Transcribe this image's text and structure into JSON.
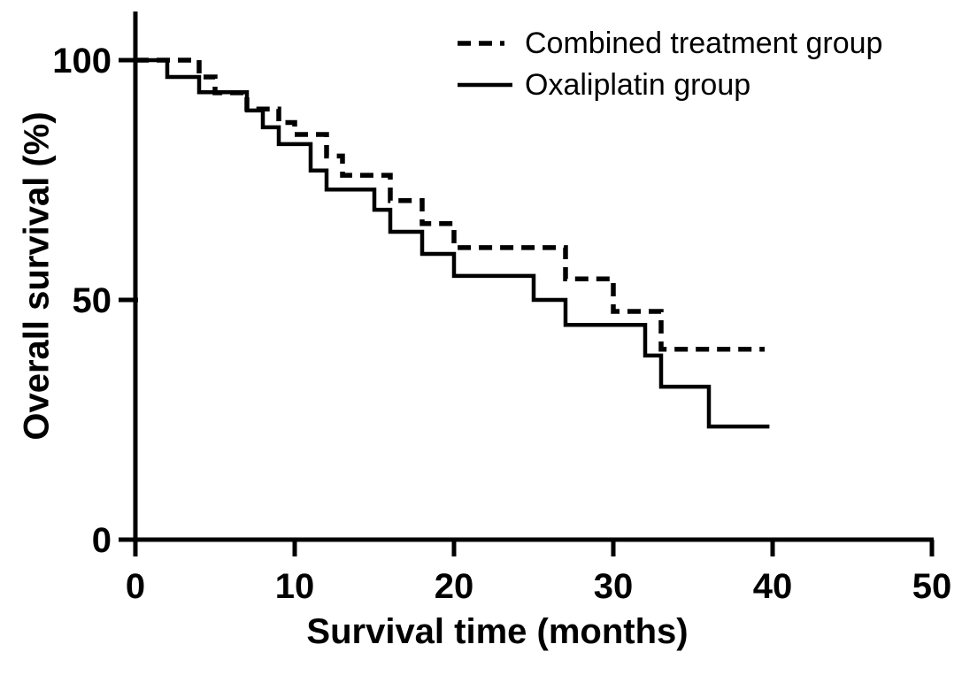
{
  "figure": {
    "background": "#ffffff",
    "line_color": "#000000"
  },
  "chart_data": {
    "type": "line",
    "subtype": "kaplan-meier-step",
    "title": "",
    "xlabel": "Survival time (months)",
    "ylabel": "Overall survival (%)",
    "xlim": [
      0,
      50
    ],
    "ylim": [
      0,
      100
    ],
    "x_ticks": [
      0,
      10,
      20,
      30,
      40,
      50
    ],
    "y_ticks": [
      100,
      50,
      0
    ],
    "grid": false,
    "legend_position": "top-right-inside",
    "series": [
      {
        "name": "Combined treatment group",
        "line_style": "dashed",
        "color": "#000000",
        "step_points": [
          [
            0,
            100
          ],
          [
            4,
            96.5
          ],
          [
            5,
            93.2
          ],
          [
            7,
            89.8
          ],
          [
            9,
            87
          ],
          [
            10,
            84.5
          ],
          [
            12,
            80
          ],
          [
            13,
            76
          ],
          [
            16,
            70.7
          ],
          [
            18,
            65.9
          ],
          [
            20,
            60.9
          ],
          [
            27,
            54.4
          ],
          [
            30,
            47.6
          ],
          [
            33,
            39.7
          ]
        ],
        "end_x": 39.5
      },
      {
        "name": "Oxaliplatin group",
        "line_style": "solid",
        "color": "#000000",
        "step_points": [
          [
            0,
            100
          ],
          [
            2,
            96.5
          ],
          [
            4,
            93.3
          ],
          [
            7,
            89.5
          ],
          [
            8,
            86
          ],
          [
            9,
            82.5
          ],
          [
            11,
            77
          ],
          [
            12,
            73
          ],
          [
            15,
            68.8
          ],
          [
            16,
            64.2
          ],
          [
            18,
            59.6
          ],
          [
            20,
            55
          ],
          [
            25,
            50
          ],
          [
            27,
            44.8
          ],
          [
            32,
            38.4
          ],
          [
            33,
            31.9
          ],
          [
            36,
            23.6
          ]
        ],
        "end_x": 39.8
      }
    ]
  }
}
